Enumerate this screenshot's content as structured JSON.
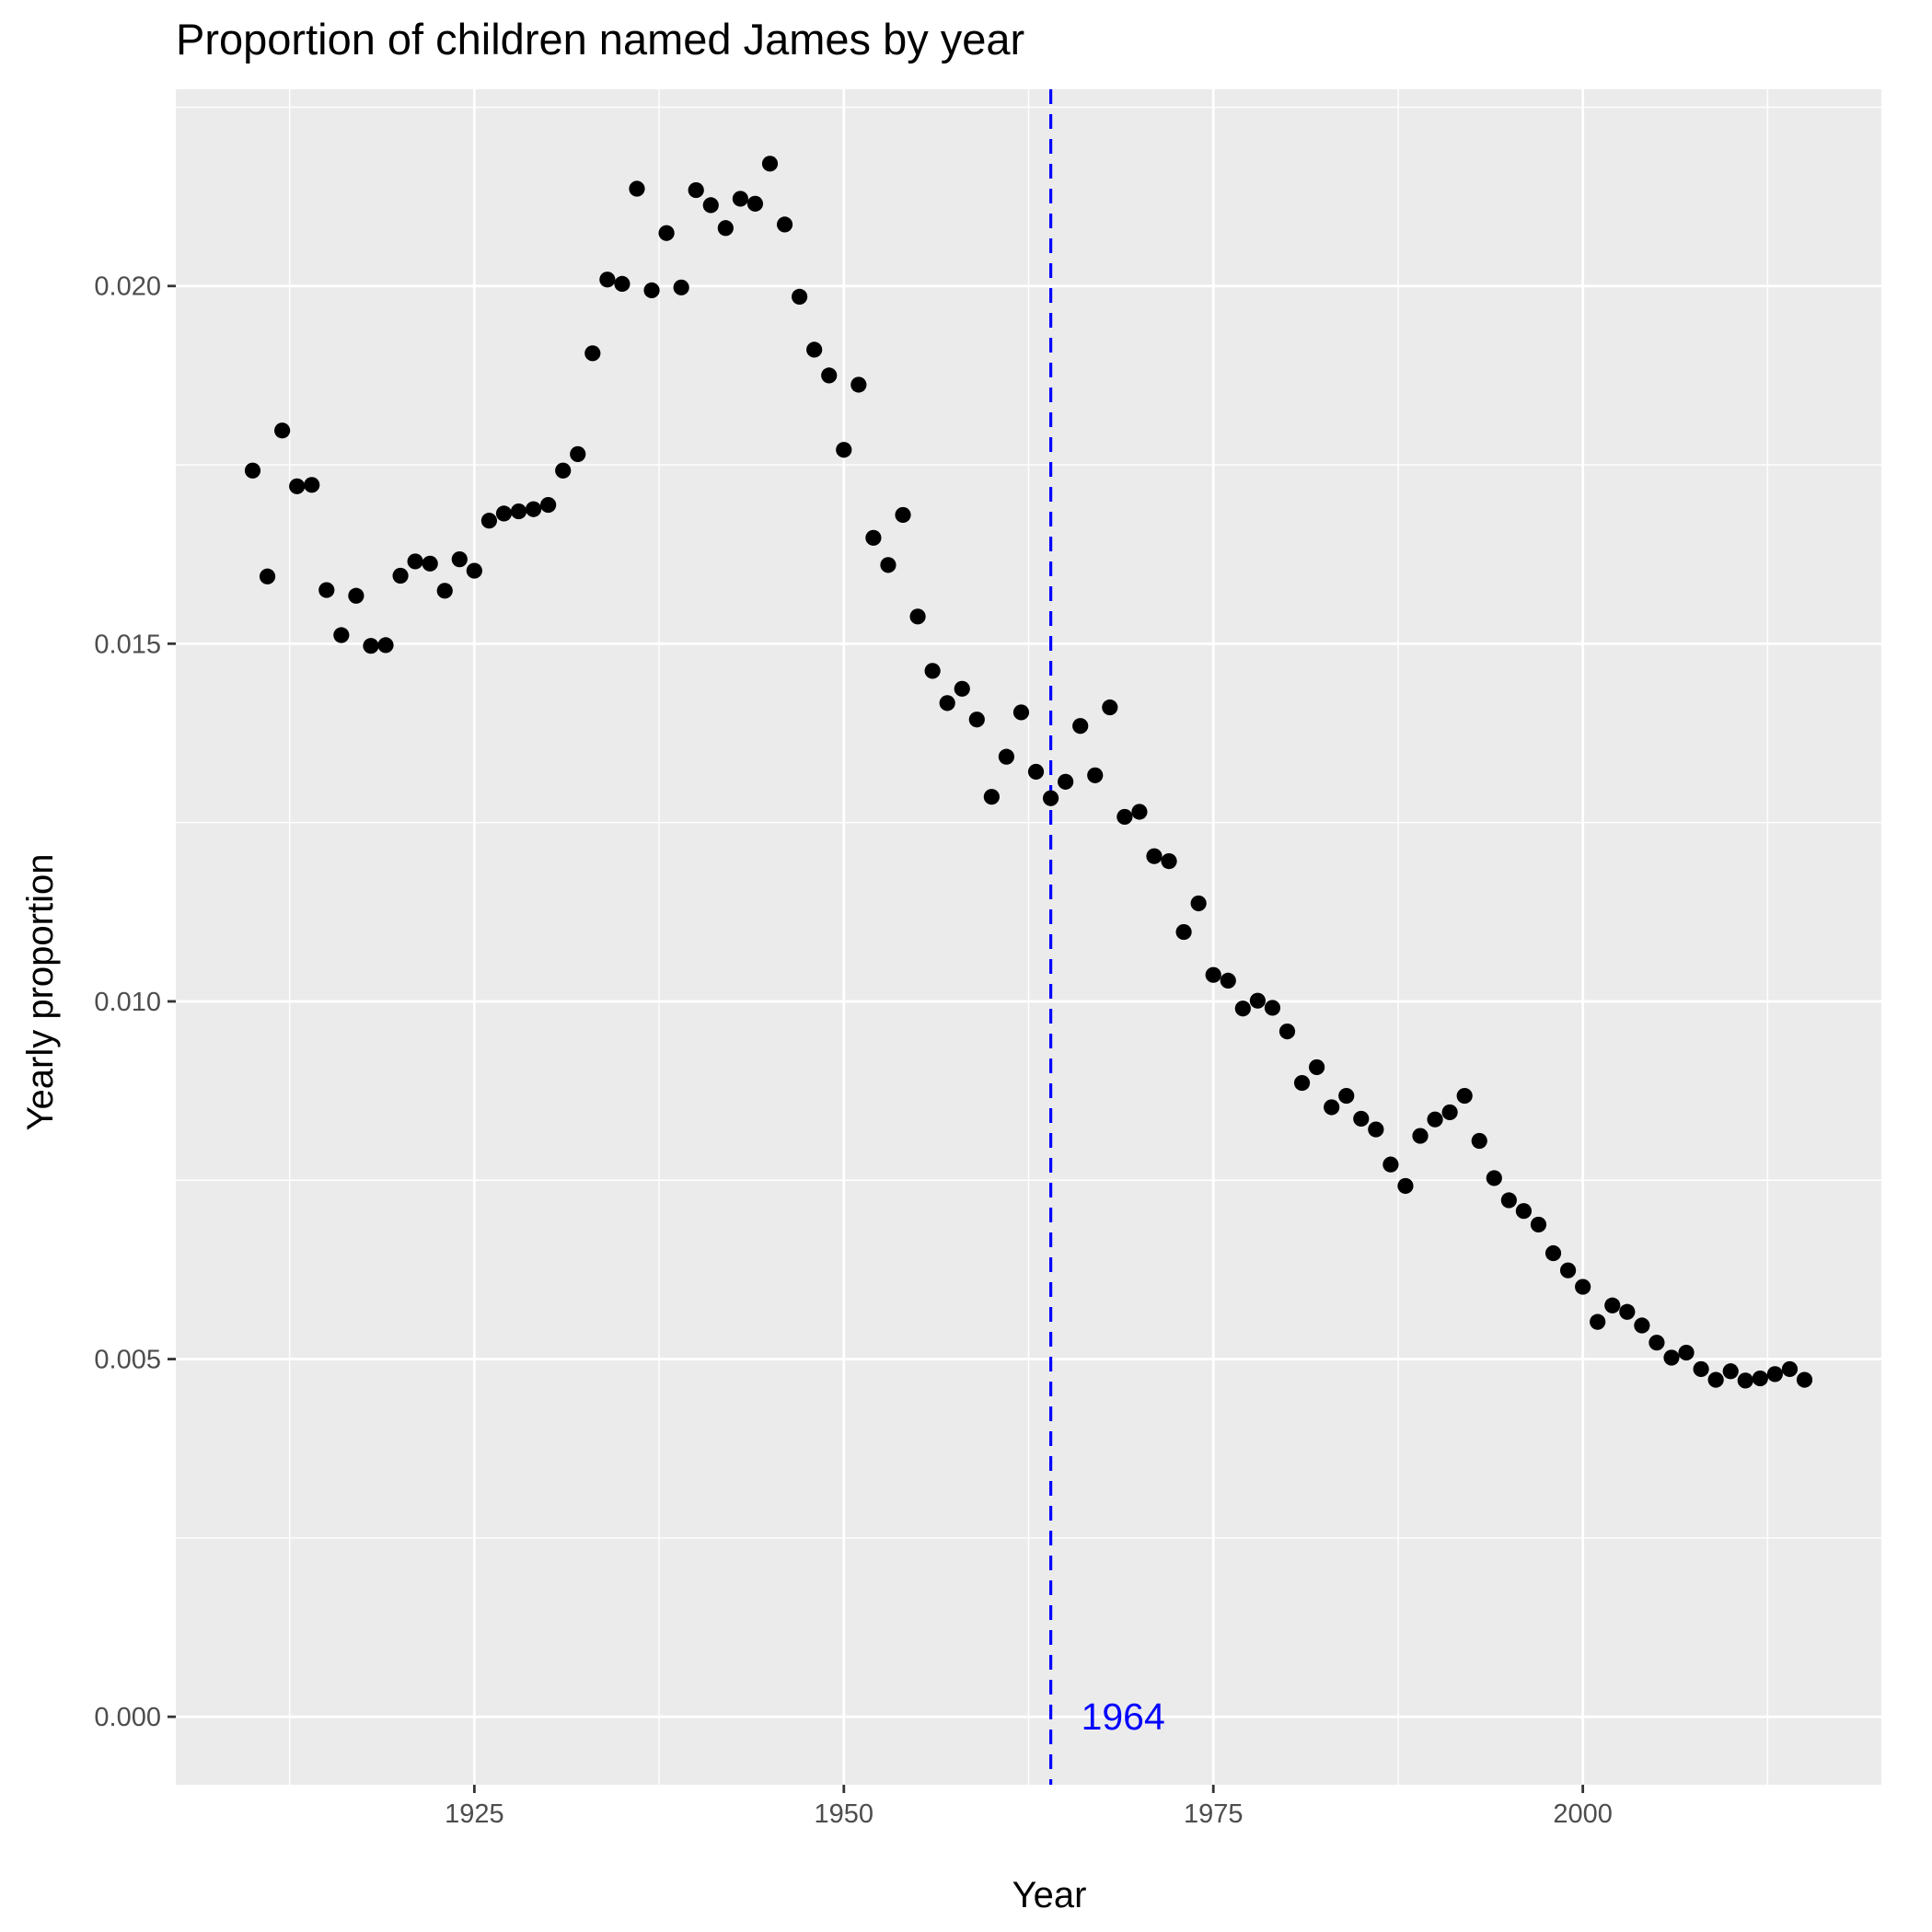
{
  "chart_data": {
    "type": "scatter",
    "title": "Proportion of children named James by year",
    "xlabel": "Year",
    "ylabel": "Yearly proportion",
    "xlim": [
      1904.8,
      2020.2
    ],
    "ylim": [
      -0.00095,
      0.02275
    ],
    "x_ticks": [
      1925,
      1950,
      1975,
      2000
    ],
    "x_tick_labels": [
      "1925",
      "1950",
      "1975",
      "2000"
    ],
    "y_ticks": [
      0.0,
      0.005,
      0.01,
      0.015,
      0.02
    ],
    "y_tick_labels": [
      "0.000",
      "0.005",
      "0.010",
      "0.015",
      "0.020"
    ],
    "grid": true,
    "background": "#ebebeb",
    "grid_color": "#ffffff",
    "point_color": "#000000",
    "reference_line": {
      "x": 1964,
      "label": "1964",
      "color": "#0000ff",
      "style": "dashed"
    },
    "series": [
      {
        "x": [
          1910,
          1911,
          1912,
          1913,
          1914,
          1915,
          1916,
          1917,
          1918,
          1919,
          1920,
          1921,
          1922,
          1923,
          1924,
          1925,
          1926,
          1927,
          1928,
          1929,
          1930,
          1931,
          1932,
          1933,
          1934,
          1935,
          1936,
          1937,
          1938,
          1939,
          1940,
          1941,
          1942,
          1943,
          1944,
          1945,
          1946,
          1947,
          1948,
          1949,
          1950,
          1951,
          1952,
          1953,
          1954,
          1955,
          1956,
          1957,
          1958,
          1959,
          1960,
          1961,
          1962,
          1963,
          1964,
          1965,
          1966,
          1967,
          1968,
          1969,
          1970,
          1971,
          1972,
          1973,
          1974,
          1975,
          1976,
          1977,
          1978,
          1979,
          1980,
          1981,
          1982,
          1983,
          1984,
          1985,
          1986,
          1987,
          1988,
          1989,
          1990,
          1991,
          1992,
          1993,
          1994,
          1995,
          1996,
          1997,
          1998,
          1999,
          2000,
          2001,
          2002,
          2003,
          2004,
          2005,
          2006,
          2007,
          2008,
          2009,
          2010,
          2011,
          2012,
          2013,
          2014,
          2015
        ],
        "y": [
          0.01742,
          0.01594,
          0.01798,
          0.0172,
          0.01722,
          0.01575,
          0.01512,
          0.01567,
          0.01497,
          0.01498,
          0.01595,
          0.01615,
          0.01612,
          0.01574,
          0.01618,
          0.01602,
          0.01672,
          0.01682,
          0.01685,
          0.01688,
          0.01694,
          0.01742,
          0.01765,
          0.01906,
          0.02009,
          0.02003,
          0.02136,
          0.01994,
          0.02074,
          0.01998,
          0.02134,
          0.02113,
          0.02081,
          0.02122,
          0.02115,
          0.02171,
          0.02086,
          0.01985,
          0.01911,
          0.01875,
          0.01771,
          0.01862,
          0.01648,
          0.0161,
          0.0168,
          0.01538,
          0.01462,
          0.01417,
          0.01437,
          0.01394,
          0.01286,
          0.01342,
          0.01404,
          0.01321,
          0.01284,
          0.01307,
          0.01385,
          0.01316,
          0.01411,
          0.01258,
          0.01265,
          0.01203,
          0.01196,
          0.01097,
          0.01137,
          0.01037,
          0.01029,
          0.0099,
          0.01001,
          0.00991,
          0.00958,
          0.00886,
          0.00908,
          0.00852,
          0.00868,
          0.00836,
          0.00821,
          0.00772,
          0.00742,
          0.00812,
          0.00835,
          0.00845,
          0.00868,
          0.00805,
          0.00753,
          0.00722,
          0.00707,
          0.00688,
          0.00648,
          0.00624,
          0.00601,
          0.00552,
          0.00575,
          0.00566,
          0.00547,
          0.00523,
          0.00502,
          0.00509,
          0.00486,
          0.00471,
          0.00483,
          0.0047,
          0.00473,
          0.00479,
          0.00486,
          0.00471
        ]
      }
    ]
  }
}
